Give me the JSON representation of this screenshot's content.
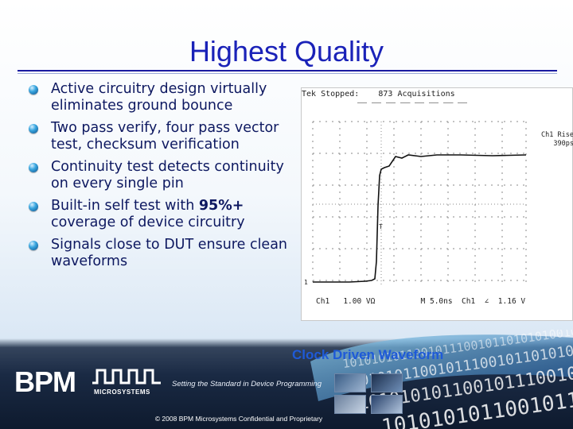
{
  "slide": {
    "title": "Highest Quality",
    "bullets": [
      {
        "label": "Active circuitry design virtually eliminates ground bounce"
      },
      {
        "label": "Two pass verify, four pass vector test, checksum verification"
      },
      {
        "label": "Continuity test detects continuity on every single pin"
      },
      {
        "label": "Built-in self test with ",
        "bold": "95%+",
        "tail": " coverage of device circuitry"
      },
      {
        "label": "Signals close to DUT ensure clean waveforms"
      }
    ]
  },
  "scope": {
    "header_brand": "Tek",
    "header_status": "Stopped:",
    "header_acq": "873 Acquisitions",
    "rise_label": "Ch1 Rise",
    "rise_value": "390ps",
    "footer_text": "Ch1   1.00 VΩ          M 5.0ns  Ch1  ∠  1.16 V",
    "marker_1": "1",
    "marker_t": "T"
  },
  "caption": "Clock Driven Waveform",
  "footer": {
    "brand": "BPM",
    "brand_sub": "MICROSYSTEMS",
    "tagline": "Setting the Standard in Device Programming",
    "copyright": "© 2008 BPM Microsystems Confidential and Proprietary",
    "binary": "101010101100101110010110101010010101011100101011010110010101101001011101001010111001010"
  },
  "colors": {
    "title": "#1a22b8",
    "text": "#0d1860",
    "caption": "#1e5ad8",
    "footer": "#1a2a44"
  }
}
